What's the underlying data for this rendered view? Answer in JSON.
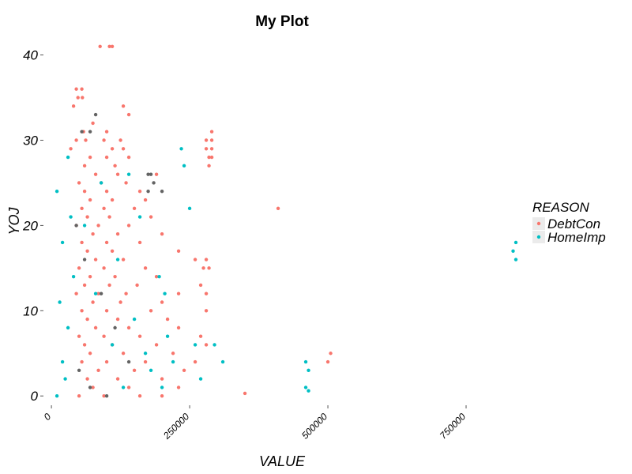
{
  "chart_data": {
    "type": "scatter",
    "title": "My Plot",
    "xlabel": "VALUE",
    "ylabel": "YOJ",
    "xlim": [
      -13000,
      850000
    ],
    "ylim": [
      -1,
      42
    ],
    "x_ticks": [
      0,
      250000,
      500000,
      750000
    ],
    "x_tick_labels": [
      "0",
      "250000",
      "500000",
      "750000"
    ],
    "y_ticks": [
      0,
      10,
      20,
      30,
      40
    ],
    "y_tick_labels": [
      "0",
      "10",
      "20",
      "30",
      "40"
    ],
    "grid": false,
    "legend": {
      "title": "REASON",
      "position": "right"
    },
    "series": [
      {
        "name": "DebtCon",
        "color": "#f8766d",
        "points": [
          [
            88000,
            41
          ],
          [
            105000,
            41
          ],
          [
            110000,
            41
          ],
          [
            45000,
            36
          ],
          [
            55000,
            36
          ],
          [
            48000,
            35
          ],
          [
            56000,
            35
          ],
          [
            40000,
            34
          ],
          [
            130000,
            34
          ],
          [
            140000,
            33
          ],
          [
            75000,
            32
          ],
          [
            58000,
            31
          ],
          [
            100000,
            31
          ],
          [
            290000,
            31
          ],
          [
            45000,
            30
          ],
          [
            62000,
            30
          ],
          [
            95000,
            30
          ],
          [
            125000,
            30
          ],
          [
            280000,
            30
          ],
          [
            290000,
            30
          ],
          [
            35000,
            29
          ],
          [
            110000,
            29
          ],
          [
            130000,
            29
          ],
          [
            280000,
            29
          ],
          [
            290000,
            29
          ],
          [
            70000,
            28
          ],
          [
            100000,
            28
          ],
          [
            140000,
            28
          ],
          [
            285000,
            28
          ],
          [
            290000,
            28
          ],
          [
            60000,
            27
          ],
          [
            115000,
            27
          ],
          [
            285000,
            27
          ],
          [
            80000,
            26
          ],
          [
            120000,
            26
          ],
          [
            190000,
            26
          ],
          [
            50000,
            25
          ],
          [
            90000,
            25
          ],
          [
            135000,
            25
          ],
          [
            60000,
            24
          ],
          [
            100000,
            24
          ],
          [
            160000,
            24
          ],
          [
            70000,
            23
          ],
          [
            110000,
            23
          ],
          [
            170000,
            23
          ],
          [
            55000,
            22
          ],
          [
            95000,
            22
          ],
          [
            150000,
            22
          ],
          [
            410000,
            22
          ],
          [
            65000,
            21
          ],
          [
            105000,
            21
          ],
          [
            180000,
            21
          ],
          [
            45000,
            20
          ],
          [
            85000,
            20
          ],
          [
            140000,
            20
          ],
          [
            75000,
            19
          ],
          [
            120000,
            19
          ],
          [
            200000,
            19
          ],
          [
            55000,
            18
          ],
          [
            100000,
            18
          ],
          [
            160000,
            18
          ],
          [
            65000,
            17
          ],
          [
            110000,
            17
          ],
          [
            230000,
            17
          ],
          [
            80000,
            16
          ],
          [
            130000,
            16
          ],
          [
            260000,
            16
          ],
          [
            280000,
            16
          ],
          [
            50000,
            15
          ],
          [
            95000,
            15
          ],
          [
            170000,
            15
          ],
          [
            275000,
            15
          ],
          [
            285000,
            15
          ],
          [
            70000,
            14
          ],
          [
            115000,
            14
          ],
          [
            190000,
            14
          ],
          [
            60000,
            13
          ],
          [
            105000,
            13
          ],
          [
            155000,
            13
          ],
          [
            270000,
            13
          ],
          [
            45000,
            12
          ],
          [
            85000,
            12
          ],
          [
            135000,
            12
          ],
          [
            230000,
            12
          ],
          [
            280000,
            12
          ],
          [
            75000,
            11
          ],
          [
            125000,
            11
          ],
          [
            200000,
            11
          ],
          [
            55000,
            10
          ],
          [
            100000,
            10
          ],
          [
            180000,
            10
          ],
          [
            280000,
            10
          ],
          [
            65000,
            9
          ],
          [
            120000,
            9
          ],
          [
            210000,
            9
          ],
          [
            80000,
            8
          ],
          [
            140000,
            8
          ],
          [
            230000,
            8
          ],
          [
            50000,
            7
          ],
          [
            95000,
            7
          ],
          [
            160000,
            7
          ],
          [
            270000,
            7
          ],
          [
            60000,
            6
          ],
          [
            110000,
            6
          ],
          [
            190000,
            6
          ],
          [
            280000,
            6
          ],
          [
            70000,
            5
          ],
          [
            130000,
            5
          ],
          [
            220000,
            5
          ],
          [
            505000,
            5
          ],
          [
            55000,
            4
          ],
          [
            100000,
            4
          ],
          [
            170000,
            4
          ],
          [
            260000,
            4
          ],
          [
            500000,
            4
          ],
          [
            85000,
            3
          ],
          [
            150000,
            3
          ],
          [
            240000,
            3
          ],
          [
            65000,
            2
          ],
          [
            120000,
            2
          ],
          [
            200000,
            2
          ],
          [
            75000,
            1
          ],
          [
            140000,
            1
          ],
          [
            230000,
            1
          ],
          [
            50000,
            0
          ],
          [
            95000,
            0
          ],
          [
            160000,
            0
          ],
          [
            200000,
            0
          ],
          [
            350000,
            0.3
          ]
        ]
      },
      {
        "name": "HomeImp",
        "color": "#00bfc4",
        "points": [
          [
            10000,
            0
          ],
          [
            25000,
            2
          ],
          [
            20000,
            4
          ],
          [
            30000,
            8
          ],
          [
            15000,
            11
          ],
          [
            40000,
            14
          ],
          [
            20000,
            18
          ],
          [
            35000,
            21
          ],
          [
            10000,
            24
          ],
          [
            30000,
            28
          ],
          [
            90000,
            25
          ],
          [
            140000,
            26
          ],
          [
            160000,
            21
          ],
          [
            195000,
            14
          ],
          [
            205000,
            12
          ],
          [
            210000,
            7
          ],
          [
            220000,
            4
          ],
          [
            240000,
            27
          ],
          [
            235000,
            29
          ],
          [
            250000,
            22
          ],
          [
            260000,
            6
          ],
          [
            270000,
            2
          ],
          [
            295000,
            6
          ],
          [
            310000,
            4
          ],
          [
            460000,
            4
          ],
          [
            465000,
            3
          ],
          [
            460000,
            1
          ],
          [
            465000,
            0.6
          ],
          [
            840000,
            18
          ],
          [
            835000,
            17
          ],
          [
            840000,
            16
          ],
          [
            180000,
            3
          ],
          [
            150000,
            9
          ],
          [
            120000,
            16
          ],
          [
            60000,
            20
          ],
          [
            80000,
            12
          ],
          [
            110000,
            6
          ],
          [
            130000,
            1
          ],
          [
            170000,
            5
          ],
          [
            200000,
            1
          ]
        ]
      },
      {
        "name": "",
        "color": "#636363",
        "points": [
          [
            55000,
            31
          ],
          [
            70000,
            31
          ],
          [
            80000,
            33
          ],
          [
            45000,
            20
          ],
          [
            60000,
            16
          ],
          [
            90000,
            12
          ],
          [
            115000,
            8
          ],
          [
            175000,
            26
          ],
          [
            180000,
            26
          ],
          [
            185000,
            25
          ],
          [
            175000,
            24
          ],
          [
            200000,
            24
          ],
          [
            50000,
            3
          ],
          [
            70000,
            1
          ],
          [
            100000,
            0
          ],
          [
            140000,
            4
          ]
        ]
      }
    ]
  }
}
